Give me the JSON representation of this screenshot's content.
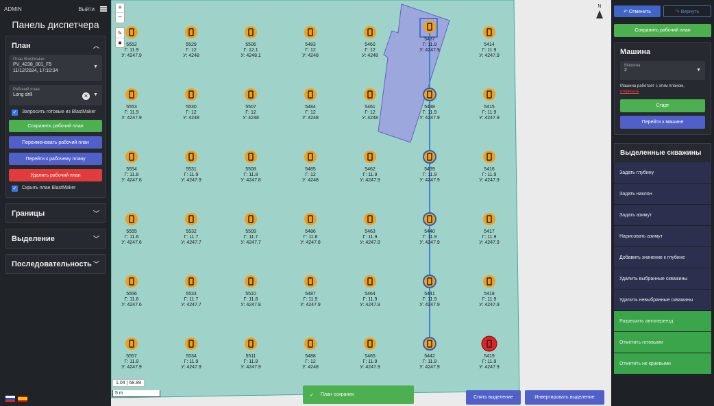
{
  "left": {
    "user": "ADMIN",
    "logout": "Выйти",
    "title": "Панель диспетчера",
    "plan_section": "План",
    "blastmaker_label": "План BlastMaker",
    "blastmaker_value": "PV_4238_001_F5",
    "blastmaker_date": "11/12/2024, 17:10:34",
    "workplan_label": "Рабочий план",
    "workplan_value": "Long drill",
    "request_ready": "Запросить готовые из BlastMaker",
    "save_plan": "Сохранить рабочий план",
    "rename_plan": "Переименовать рабочий план",
    "goto_plan": "Перейти к рабочему плану",
    "delete_plan": "Удалить рабочий план",
    "hide_plan": "Скрыть план BlastMaker",
    "sections": [
      "Границы",
      "Выделение",
      "Последовательность"
    ]
  },
  "map": {
    "north": "N",
    "coords": "1.04 | 68.89",
    "scale": "5 m",
    "toast": "План сохранен",
    "clear_selection": "Снять выделение",
    "invert_selection": "Инвертировать выделение",
    "holes": [
      {
        "id": "5552",
        "g": "Г: 11.9",
        "u": "У: 4247.9"
      },
      {
        "id": "5529",
        "g": "Г: 12",
        "u": "У: 4248"
      },
      {
        "id": "5506",
        "g": "Г: 12.1",
        "u": "У: 4248.1"
      },
      {
        "id": "5483",
        "g": "Г: 12",
        "u": "У: 4248"
      },
      {
        "id": "5460",
        "g": "Г: 12",
        "u": "У: 4248"
      },
      {
        "id": "5437",
        "g": "Г: 11.9",
        "u": "У: 4247.9"
      },
      {
        "id": "5414",
        "g": "Г: 11.9",
        "u": "У: 4247.9"
      },
      {
        "id": "5553",
        "g": "Г: 11.9",
        "u": "У: 4247.9"
      },
      {
        "id": "5530",
        "g": "Г: 12",
        "u": "У: 4248"
      },
      {
        "id": "5507",
        "g": "Г: 12",
        "u": "У: 4248"
      },
      {
        "id": "5484",
        "g": "Г: 12",
        "u": "У: 4248"
      },
      {
        "id": "5461",
        "g": "Г: 12",
        "u": "У: 4248"
      },
      {
        "id": "5438",
        "g": "Г: 11.9",
        "u": "У: 4247.9"
      },
      {
        "id": "5415",
        "g": "Г: 11.9",
        "u": "У: 4247.9"
      },
      {
        "id": "5554",
        "g": "Г: 11.8",
        "u": "У: 4247.8"
      },
      {
        "id": "5531",
        "g": "Г: 11.9",
        "u": "У: 4247.9"
      },
      {
        "id": "5508",
        "g": "Г: 11.8",
        "u": "У: 4247.8"
      },
      {
        "id": "5485",
        "g": "Г: 12",
        "u": "У: 4248"
      },
      {
        "id": "5462",
        "g": "Г: 11.9",
        "u": "У: 4247.9"
      },
      {
        "id": "5439",
        "g": "Г: 11.9",
        "u": "У: 4247.9"
      },
      {
        "id": "5416",
        "g": "Г: 11.9",
        "u": "У: 4247.9"
      },
      {
        "id": "5555",
        "g": "Г: 11.6",
        "u": "У: 4247.6"
      },
      {
        "id": "5532",
        "g": "Г: 11.7",
        "u": "У: 4247.7"
      },
      {
        "id": "5509",
        "g": "Г: 11.7",
        "u": "У: 4247.7"
      },
      {
        "id": "5486",
        "g": "Г: 11.8",
        "u": "У: 4247.8"
      },
      {
        "id": "5463",
        "g": "Г: 11.9",
        "u": "У: 4247.9"
      },
      {
        "id": "5440",
        "g": "Г: 11.9",
        "u": "У: 4247.9"
      },
      {
        "id": "5417",
        "g": "Г: 11.9",
        "u": "У: 4247.9"
      },
      {
        "id": "5556",
        "g": "Г: 11.6",
        "u": "У: 4247.6"
      },
      {
        "id": "5533",
        "g": "Г: 11.7",
        "u": "У: 4247.7"
      },
      {
        "id": "5510",
        "g": "Г: 11.8",
        "u": "У: 4247.8"
      },
      {
        "id": "5487",
        "g": "Г: 11.9",
        "u": "У: 4247.9"
      },
      {
        "id": "5464",
        "g": "Г: 11.9",
        "u": "У: 4247.9"
      },
      {
        "id": "5441",
        "g": "Г: 11.9",
        "u": "У: 4247.9"
      },
      {
        "id": "5418",
        "g": "Г: 11.9",
        "u": "У: 4247.9"
      },
      {
        "id": "5557",
        "g": "Г: 11.9",
        "u": "У: 4247.9"
      },
      {
        "id": "5534",
        "g": "Г: 11.9",
        "u": "У: 4247.9"
      },
      {
        "id": "5511",
        "g": "Г: 11.9",
        "u": "У: 4247.9"
      },
      {
        "id": "5488",
        "g": "Г: 12",
        "u": "У: 4248"
      },
      {
        "id": "5465",
        "g": "Г: 11.9",
        "u": "У: 4247.9"
      },
      {
        "id": "5442",
        "g": "Г: 11.9",
        "u": "У: 4247.9"
      },
      {
        "id": "5419",
        "g": "Г: 11.9",
        "u": "У: 4247.9"
      }
    ]
  },
  "right": {
    "undo": "Отменить",
    "redo": "Вернуть",
    "save_plan": "Сохранить рабочий план",
    "machine_title": "Машина",
    "machine_label": "Машина",
    "machine_value": "2",
    "machine_note": "Машина работает с этим планом,",
    "machine_link": "открепить",
    "start": "Старт",
    "goto_machine": "Перейти к машине",
    "selected_title": "Выделенные скважины",
    "actions": [
      "Задать глубину",
      "Задать наклон",
      "Задать азимут",
      "Нарисовать азимут",
      "Добавить значение к глубине",
      "Удалить выбранные скважины",
      "Удалить невыбранные скважины",
      "Разрешить автопереезд",
      "Отметить готовыми",
      "Отметить не краевыми"
    ]
  }
}
